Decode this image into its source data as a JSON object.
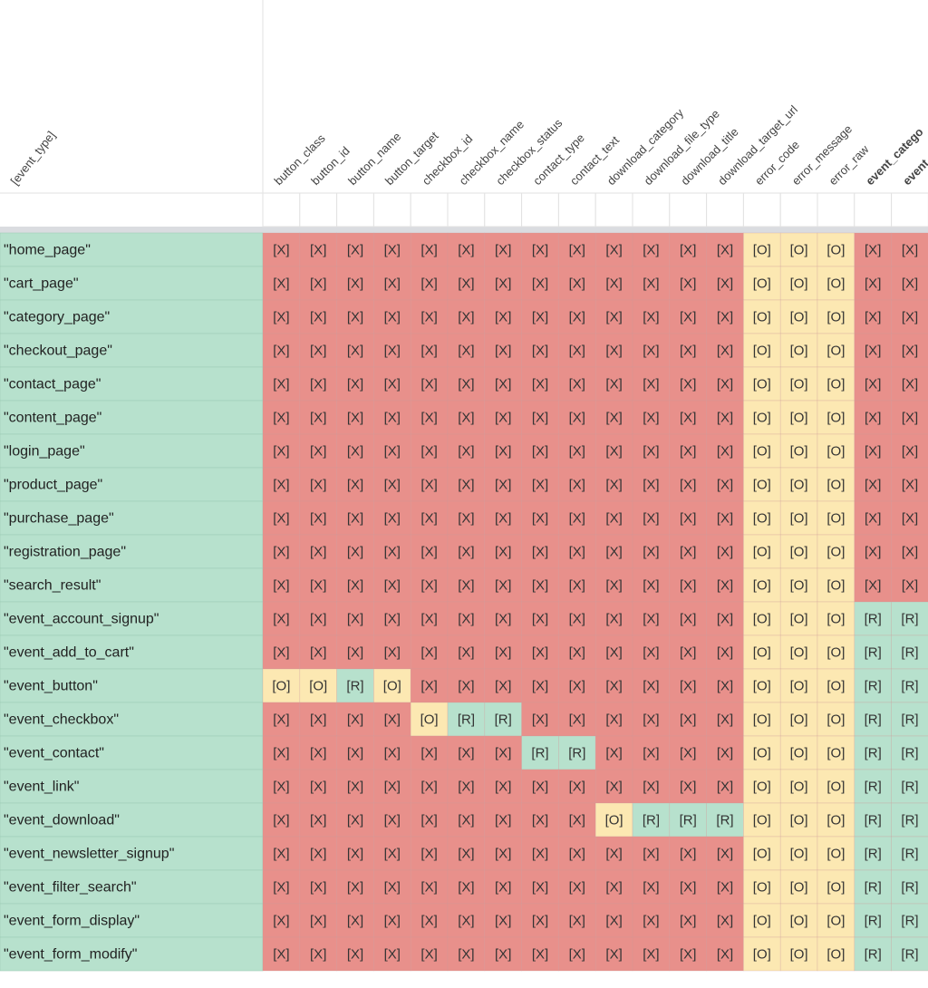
{
  "sheet": {
    "row_header_title": "[event_type]",
    "columns": [
      "button_class",
      "button_id",
      "button_name",
      "button_target",
      "checkbox_id",
      "checkbox_name",
      "checkbox_status",
      "contact_type",
      "contact_text",
      "download_category",
      "download_file_type",
      "download_title",
      "download_target_url",
      "error_code",
      "error_message",
      "error_raw",
      "event_catego",
      "event"
    ],
    "column_colors": [
      "#444444",
      "#444444",
      "#444444",
      "#444444",
      "#444444",
      "#444444",
      "#444444",
      "#444444",
      "#444444",
      "#444444",
      "#444444",
      "#444444",
      "#444444",
      "#444444",
      "#444444",
      "#444444",
      "#f29900",
      "#f29900"
    ],
    "cell_colors": {
      "[X]": "#e8908b",
      "[O]": "#fce8b2",
      "[R]": "#b7e1cd"
    },
    "label_color": "#b7e1cd",
    "rows": [
      {
        "label": "\"home_page\"",
        "cells": [
          "[X]",
          "[X]",
          "[X]",
          "[X]",
          "[X]",
          "[X]",
          "[X]",
          "[X]",
          "[X]",
          "[X]",
          "[X]",
          "[X]",
          "[X]",
          "[O]",
          "[O]",
          "[O]",
          "[X]",
          "[X]"
        ]
      },
      {
        "label": "\"cart_page\"",
        "cells": [
          "[X]",
          "[X]",
          "[X]",
          "[X]",
          "[X]",
          "[X]",
          "[X]",
          "[X]",
          "[X]",
          "[X]",
          "[X]",
          "[X]",
          "[X]",
          "[O]",
          "[O]",
          "[O]",
          "[X]",
          "[X]"
        ]
      },
      {
        "label": "\"category_page\"",
        "cells": [
          "[X]",
          "[X]",
          "[X]",
          "[X]",
          "[X]",
          "[X]",
          "[X]",
          "[X]",
          "[X]",
          "[X]",
          "[X]",
          "[X]",
          "[X]",
          "[O]",
          "[O]",
          "[O]",
          "[X]",
          "[X]"
        ]
      },
      {
        "label": "\"checkout_page\"",
        "cells": [
          "[X]",
          "[X]",
          "[X]",
          "[X]",
          "[X]",
          "[X]",
          "[X]",
          "[X]",
          "[X]",
          "[X]",
          "[X]",
          "[X]",
          "[X]",
          "[O]",
          "[O]",
          "[O]",
          "[X]",
          "[X]"
        ]
      },
      {
        "label": "\"contact_page\"",
        "cells": [
          "[X]",
          "[X]",
          "[X]",
          "[X]",
          "[X]",
          "[X]",
          "[X]",
          "[X]",
          "[X]",
          "[X]",
          "[X]",
          "[X]",
          "[X]",
          "[O]",
          "[O]",
          "[O]",
          "[X]",
          "[X]"
        ]
      },
      {
        "label": "\"content_page\"",
        "cells": [
          "[X]",
          "[X]",
          "[X]",
          "[X]",
          "[X]",
          "[X]",
          "[X]",
          "[X]",
          "[X]",
          "[X]",
          "[X]",
          "[X]",
          "[X]",
          "[O]",
          "[O]",
          "[O]",
          "[X]",
          "[X]"
        ]
      },
      {
        "label": "\"login_page\"",
        "cells": [
          "[X]",
          "[X]",
          "[X]",
          "[X]",
          "[X]",
          "[X]",
          "[X]",
          "[X]",
          "[X]",
          "[X]",
          "[X]",
          "[X]",
          "[X]",
          "[O]",
          "[O]",
          "[O]",
          "[X]",
          "[X]"
        ]
      },
      {
        "label": "\"product_page\"",
        "cells": [
          "[X]",
          "[X]",
          "[X]",
          "[X]",
          "[X]",
          "[X]",
          "[X]",
          "[X]",
          "[X]",
          "[X]",
          "[X]",
          "[X]",
          "[X]",
          "[O]",
          "[O]",
          "[O]",
          "[X]",
          "[X]"
        ]
      },
      {
        "label": "\"purchase_page\"",
        "cells": [
          "[X]",
          "[X]",
          "[X]",
          "[X]",
          "[X]",
          "[X]",
          "[X]",
          "[X]",
          "[X]",
          "[X]",
          "[X]",
          "[X]",
          "[X]",
          "[O]",
          "[O]",
          "[O]",
          "[X]",
          "[X]"
        ]
      },
      {
        "label": "\"registration_page\"",
        "cells": [
          "[X]",
          "[X]",
          "[X]",
          "[X]",
          "[X]",
          "[X]",
          "[X]",
          "[X]",
          "[X]",
          "[X]",
          "[X]",
          "[X]",
          "[X]",
          "[O]",
          "[O]",
          "[O]",
          "[X]",
          "[X]"
        ]
      },
      {
        "label": "\"search_result\"",
        "cells": [
          "[X]",
          "[X]",
          "[X]",
          "[X]",
          "[X]",
          "[X]",
          "[X]",
          "[X]",
          "[X]",
          "[X]",
          "[X]",
          "[X]",
          "[X]",
          "[O]",
          "[O]",
          "[O]",
          "[X]",
          "[X]"
        ]
      },
      {
        "label": "\"event_account_signup\"",
        "cells": [
          "[X]",
          "[X]",
          "[X]",
          "[X]",
          "[X]",
          "[X]",
          "[X]",
          "[X]",
          "[X]",
          "[X]",
          "[X]",
          "[X]",
          "[X]",
          "[O]",
          "[O]",
          "[O]",
          "[R]",
          "[R]"
        ]
      },
      {
        "label": "\"event_add_to_cart\"",
        "cells": [
          "[X]",
          "[X]",
          "[X]",
          "[X]",
          "[X]",
          "[X]",
          "[X]",
          "[X]",
          "[X]",
          "[X]",
          "[X]",
          "[X]",
          "[X]",
          "[O]",
          "[O]",
          "[O]",
          "[R]",
          "[R]"
        ]
      },
      {
        "label": "\"event_button\"",
        "cells": [
          "[O]",
          "[O]",
          "[R]",
          "[O]",
          "[X]",
          "[X]",
          "[X]",
          "[X]",
          "[X]",
          "[X]",
          "[X]",
          "[X]",
          "[X]",
          "[O]",
          "[O]",
          "[O]",
          "[R]",
          "[R]"
        ]
      },
      {
        "label": "\"event_checkbox\"",
        "cells": [
          "[X]",
          "[X]",
          "[X]",
          "[X]",
          "[O]",
          "[R]",
          "[R]",
          "[X]",
          "[X]",
          "[X]",
          "[X]",
          "[X]",
          "[X]",
          "[O]",
          "[O]",
          "[O]",
          "[R]",
          "[R]"
        ]
      },
      {
        "label": "\"event_contact\"",
        "cells": [
          "[X]",
          "[X]",
          "[X]",
          "[X]",
          "[X]",
          "[X]",
          "[X]",
          "[R]",
          "[R]",
          "[X]",
          "[X]",
          "[X]",
          "[X]",
          "[O]",
          "[O]",
          "[O]",
          "[R]",
          "[R]"
        ]
      },
      {
        "label": "\"event_link\"",
        "cells": [
          "[X]",
          "[X]",
          "[X]",
          "[X]",
          "[X]",
          "[X]",
          "[X]",
          "[X]",
          "[X]",
          "[X]",
          "[X]",
          "[X]",
          "[X]",
          "[O]",
          "[O]",
          "[O]",
          "[R]",
          "[R]"
        ]
      },
      {
        "label": "\"event_download\"",
        "cells": [
          "[X]",
          "[X]",
          "[X]",
          "[X]",
          "[X]",
          "[X]",
          "[X]",
          "[X]",
          "[X]",
          "[O]",
          "[R]",
          "[R]",
          "[R]",
          "[O]",
          "[O]",
          "[O]",
          "[R]",
          "[R]"
        ]
      },
      {
        "label": "\"event_newsletter_signup\"",
        "cells": [
          "[X]",
          "[X]",
          "[X]",
          "[X]",
          "[X]",
          "[X]",
          "[X]",
          "[X]",
          "[X]",
          "[X]",
          "[X]",
          "[X]",
          "[X]",
          "[O]",
          "[O]",
          "[O]",
          "[R]",
          "[R]"
        ]
      },
      {
        "label": "\"event_filter_search\"",
        "cells": [
          "[X]",
          "[X]",
          "[X]",
          "[X]",
          "[X]",
          "[X]",
          "[X]",
          "[X]",
          "[X]",
          "[X]",
          "[X]",
          "[X]",
          "[X]",
          "[O]",
          "[O]",
          "[O]",
          "[R]",
          "[R]"
        ]
      },
      {
        "label": "\"event_form_display\"",
        "cells": [
          "[X]",
          "[X]",
          "[X]",
          "[X]",
          "[X]",
          "[X]",
          "[X]",
          "[X]",
          "[X]",
          "[X]",
          "[X]",
          "[X]",
          "[X]",
          "[O]",
          "[O]",
          "[O]",
          "[R]",
          "[R]"
        ]
      },
      {
        "label": "\"event_form_modify\"",
        "cells": [
          "[X]",
          "[X]",
          "[X]",
          "[X]",
          "[X]",
          "[X]",
          "[X]",
          "[X]",
          "[X]",
          "[X]",
          "[X]",
          "[X]",
          "[X]",
          "[O]",
          "[O]",
          "[O]",
          "[R]",
          "[R]"
        ]
      }
    ]
  }
}
